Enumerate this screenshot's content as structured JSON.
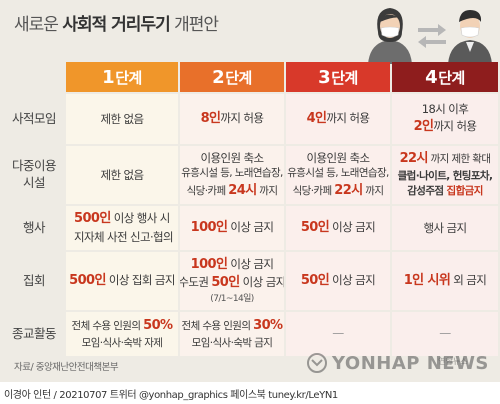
{
  "title": {
    "prefix": "새로운 ",
    "strong": "사회적 거리두기",
    "suffix": " 개편안"
  },
  "stages": [
    {
      "num": "1",
      "label": "단계",
      "color": "#f0962a"
    },
    {
      "num": "2",
      "label": "단계",
      "color": "#e8702a"
    },
    {
      "num": "3",
      "label": "단계",
      "color": "#d8392a"
    },
    {
      "num": "4",
      "label": "단계",
      "color": "#8e1d1d"
    }
  ],
  "rows": [
    {
      "label": "사적모임"
    },
    {
      "label": "다중이용\n시설"
    },
    {
      "label": "행사"
    },
    {
      "label": "집회"
    },
    {
      "label": "종교활동"
    }
  ],
  "cells": {
    "r1c1": "제한 없음",
    "r1c2_num": "8인",
    "r1c2_rest": "까지 허용",
    "r1c3_num": "4인",
    "r1c3_rest": "까지 허용",
    "r1c4_l1": "18시 이후",
    "r1c4_num": "2인",
    "r1c4_rest": "까지 허용",
    "r2c1": "제한 없음",
    "r2c2_l1": "이용인원 축소",
    "r2c2_l2": "유흥시설 등, 노래연습장,",
    "r2c2_l3a": "식당·카페 ",
    "r2c2_l3b": "24시",
    "r2c2_l3c": " 까지",
    "r2c3_l1": "이용인원 축소",
    "r2c3_l2": "유흥시설 등, 노래연습장,",
    "r2c3_l3a": "식당·카페 ",
    "r2c3_l3b": "22시",
    "r2c3_l3c": " 까지",
    "r2c4_l1a": "22시",
    "r2c4_l1b": " 까지 제한 확대",
    "r2c4_l2": "클럽·나이트, 헌팅포차,",
    "r2c4_l3a": "감성주점 ",
    "r2c4_l3b": "집합금지",
    "r3c1_l1a": "500인",
    "r3c1_l1b": " 이상 행사 시",
    "r3c1_l2": "지자체 사전 신고·협의",
    "r3c2_num": "100인",
    "r3c2_rest": " 이상 금지",
    "r3c3_num": "50인",
    "r3c3_rest": " 이상 금지",
    "r3c4": "행사 금지",
    "r4c1_num": "500인",
    "r4c1_rest": " 이상 집회 금지",
    "r4c2_l1a": "100인",
    "r4c2_l1b": " 이상 금지",
    "r4c2_l2a": "수도권 ",
    "r4c2_l2b": "50인",
    "r4c2_l2c": " 이상 금지",
    "r4c2_l3": "(7/1~14일)",
    "r4c3_num": "50인",
    "r4c3_rest": " 이상 금지",
    "r4c4_num": "1인 시위",
    "r4c4_rest": " 외 금지",
    "r5c1_l1a": "전체 수용 인원의 ",
    "r5c1_l1b": "50%",
    "r5c1_l2": "모임·식사·숙박 자제",
    "r5c2_l1a": "전체 수용 인원의 ",
    "r5c2_l1b": "30%",
    "r5c2_l2": "모임·식사·숙박 금지",
    "r5c3": "—",
    "r5c4": "—"
  },
  "source": "자료/ 중앙재난안전대책본부",
  "footer": "이경아 인턴 / 20210707 트위터 @yonhap_graphics  페이스북 tuney.kr/LeYN1",
  "watermark": "YONHAP NEWS",
  "watermark_small": "연합뉴스"
}
